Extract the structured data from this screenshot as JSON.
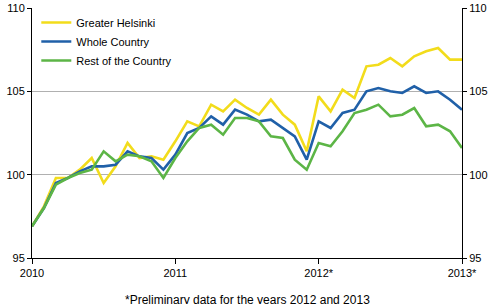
{
  "chart_data": {
    "type": "line",
    "categories": [
      "2010",
      null,
      null,
      null,
      null,
      null,
      null,
      null,
      null,
      null,
      null,
      null,
      "2011",
      null,
      null,
      null,
      null,
      null,
      null,
      null,
      null,
      null,
      null,
      null,
      "2012*",
      null,
      null,
      null,
      null,
      null,
      null,
      null,
      null,
      null,
      null,
      null,
      "2013*"
    ],
    "series": [
      {
        "name": "Greater Helsinki",
        "color": "#f2dc1b",
        "values": [
          96.9,
          98.1,
          99.8,
          99.8,
          100.3,
          101.0,
          99.5,
          100.5,
          101.9,
          101.0,
          101.1,
          100.9,
          102.0,
          103.2,
          102.9,
          104.2,
          103.8,
          104.5,
          104.0,
          103.6,
          104.5,
          103.6,
          103.0,
          101.4,
          104.7,
          103.8,
          105.1,
          104.6,
          106.5,
          106.6,
          107.0,
          106.5,
          107.1,
          107.4,
          107.6,
          106.9,
          106.9
        ]
      },
      {
        "name": "Whole Country",
        "color": "#2060a8",
        "values": [
          96.9,
          98.0,
          99.5,
          99.8,
          100.2,
          100.5,
          100.5,
          100.6,
          101.4,
          101.1,
          101.0,
          100.3,
          101.2,
          102.5,
          102.8,
          103.5,
          103.0,
          103.9,
          103.6,
          103.2,
          103.3,
          102.8,
          102.3,
          100.9,
          103.2,
          102.8,
          103.7,
          103.9,
          105.0,
          105.2,
          105.0,
          104.9,
          105.3,
          104.9,
          105.0,
          104.5,
          103.9
        ]
      },
      {
        "name": "Rest of the Country",
        "color": "#5cb546",
        "values": [
          96.9,
          98.0,
          99.4,
          99.8,
          100.1,
          100.3,
          101.4,
          100.8,
          101.2,
          101.1,
          100.8,
          99.8,
          101.0,
          102.0,
          102.8,
          103.0,
          102.4,
          103.4,
          103.4,
          103.2,
          102.3,
          102.2,
          100.9,
          100.3,
          101.9,
          101.7,
          102.6,
          103.7,
          103.9,
          104.2,
          103.5,
          103.6,
          104.0,
          102.9,
          103.0,
          102.6,
          101.6
        ]
      }
    ],
    "ylim": [
      95,
      110
    ],
    "yticks": [
      95,
      100,
      105,
      110
    ],
    "y2lim": [
      95,
      110
    ],
    "y2ticks": [
      95,
      100,
      105,
      110
    ],
    "grid": true,
    "legend": "top-left",
    "annotations": [
      "*Preliminary data for the years 2012 and 2013"
    ]
  }
}
